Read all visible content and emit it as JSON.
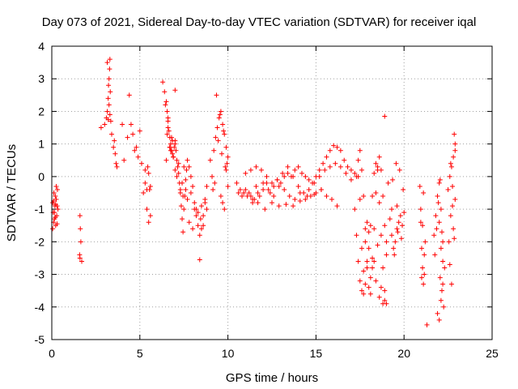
{
  "chart_data": {
    "type": "scatter",
    "title": "Day 073 of 2021, Sidereal Day-to-day VTEC variation (SDTVAR) for receiver iqal",
    "xlabel": "GPS time / hours",
    "ylabel": "SDTVAR / TECUs",
    "xlim": [
      0,
      25
    ],
    "ylim": [
      -5,
      4
    ],
    "xticks": [
      0,
      5,
      10,
      15,
      20,
      25
    ],
    "yticks": [
      -5,
      -4,
      -3,
      -2,
      -1,
      0,
      1,
      2,
      3,
      4
    ],
    "grid": true,
    "marker": "plus",
    "color": "#ff0000",
    "series": [
      {
        "name": "SDTVAR",
        "x": [
          0.05,
          0.08,
          0.12,
          0.15,
          0.18,
          0.22,
          0.25,
          0.28,
          0.32,
          0.35,
          0.1,
          0.2,
          0.3,
          0.05,
          0.15,
          0.25,
          0.1,
          0.2,
          0.3,
          0.22,
          1.6,
          1.62,
          1.65,
          1.58,
          1.7,
          1.6,
          2.8,
          3.0,
          3.1,
          3.15,
          3.2,
          3.22,
          3.25,
          3.28,
          3.3,
          3.32,
          3.35,
          3.15,
          3.25,
          3.3,
          3.2,
          3.4,
          3.5,
          3.6,
          3.65,
          3.55,
          3.7,
          4.0,
          4.1,
          4.3,
          4.4,
          4.5,
          4.6,
          4.7,
          4.8,
          4.9,
          5.0,
          5.1,
          5.2,
          5.3,
          5.4,
          5.5,
          5.6,
          5.3,
          5.45,
          5.55,
          5.4,
          5.5,
          5.6,
          6.3,
          6.4,
          6.5,
          6.55,
          6.6,
          6.65,
          6.7,
          6.75,
          6.8,
          6.85,
          6.9,
          6.95,
          7.0,
          7.05,
          7.1,
          7.15,
          7.2,
          7.25,
          7.3,
          7.35,
          7.4,
          7.45,
          7.5,
          7.55,
          7.6,
          7.65,
          7.7,
          7.8,
          7.9,
          8.0,
          8.1,
          8.2,
          8.3,
          8.4,
          8.5,
          8.6,
          8.7,
          8.8,
          6.6,
          6.7,
          6.8,
          6.9,
          7.0,
          7.2,
          7.4,
          7.6,
          6.5,
          6.6,
          6.7,
          6.85,
          7.0,
          7.3,
          7.5,
          7.7,
          7.9,
          8.1,
          8.3,
          8.5,
          8.7,
          6.45,
          6.55,
          6.75,
          7.1,
          7.45,
          7.8,
          8.0,
          8.2,
          8.45,
          8.6,
          8.4,
          7.0,
          8.8,
          9.0,
          9.1,
          9.2,
          9.3,
          9.4,
          9.5,
          9.6,
          9.7,
          9.8,
          9.9,
          10.0,
          9.35,
          9.55,
          9.75,
          9.95,
          9.45,
          9.65,
          9.85,
          9.25,
          9.15,
          9.6,
          9.8,
          9.7,
          10.0,
          9.9,
          10.6,
          10.8,
          11.0,
          11.2,
          11.4,
          11.6,
          11.8,
          12.0,
          12.2,
          12.4,
          12.6,
          12.8,
          13.0,
          13.2,
          13.4,
          13.6,
          13.8,
          14.0,
          14.2,
          14.4,
          14.6,
          14.8,
          15.0,
          15.2,
          15.4,
          15.6,
          15.8,
          16.0,
          16.2,
          16.4,
          16.6,
          16.8,
          17.0,
          17.2,
          17.4,
          11.0,
          11.3,
          11.6,
          11.9,
          12.2,
          12.5,
          12.8,
          13.1,
          13.4,
          13.7,
          14.0,
          14.3,
          14.6,
          14.9,
          15.2,
          15.5,
          15.8,
          16.1,
          16.4,
          16.7,
          17.0,
          17.3,
          11.4,
          11.7,
          12.0,
          12.3,
          12.6,
          12.9,
          13.2,
          13.5,
          13.8,
          14.1,
          14.4,
          14.7,
          15.0,
          15.3,
          15.6,
          15.9,
          16.2,
          10.5,
          10.7,
          10.9,
          11.1,
          11.3,
          11.5,
          11.7,
          12.1,
          12.5,
          12.9,
          13.3,
          13.7,
          14.1,
          14.5,
          14.9,
          15.3,
          17.2,
          17.3,
          17.4,
          17.5,
          17.6,
          17.7,
          17.8,
          17.9,
          18.0,
          18.1,
          18.2,
          18.3,
          18.4,
          18.5,
          18.6,
          18.7,
          18.8,
          18.9,
          19.0,
          17.4,
          17.5,
          17.6,
          17.7,
          17.8,
          17.9,
          18.0,
          18.1,
          18.2,
          18.3,
          18.4,
          18.5,
          18.6,
          18.7,
          18.8,
          18.9,
          17.6,
          17.8,
          18.0,
          18.2,
          18.4,
          18.6,
          18.8,
          19.0,
          17.5,
          17.9,
          18.3,
          18.7,
          19.1,
          17.7,
          18.1,
          18.5,
          18.9,
          19.0,
          18.9,
          19.2,
          19.3,
          19.4,
          19.5,
          19.6,
          19.7,
          19.8,
          19.9,
          20.0,
          19.35,
          19.55,
          19.75,
          19.95,
          19.45,
          19.65,
          19.85,
          19.3,
          19.6,
          20.9,
          20.95,
          21.0,
          21.05,
          21.1,
          21.15,
          21.2,
          20.95,
          21.05,
          21.1,
          21.0,
          21.15,
          21.3,
          21.7,
          21.8,
          21.9,
          22.0,
          22.1,
          22.2,
          22.3,
          21.75,
          21.85,
          21.95,
          22.05,
          22.15,
          22.25,
          21.9,
          22.0,
          22.1,
          22.2,
          22.05,
          22.15,
          22.1,
          22.0,
          22.2,
          22.5,
          22.6,
          22.7,
          22.8,
          22.9,
          22.55,
          22.65,
          22.75,
          22.85,
          22.6,
          22.7,
          22.8,
          22.9,
          22.65,
          22.75,
          22.85,
          22.9
        ],
        "y": [
          -0.8,
          -1.1,
          -0.5,
          -1.3,
          -0.9,
          -1.5,
          -0.7,
          -1.2,
          -0.4,
          -1.0,
          -1.4,
          -0.6,
          -0.9,
          -1.6,
          -1.1,
          -0.3,
          -0.75,
          -1.25,
          -1.45,
          -0.85,
          -1.2,
          -1.6,
          -2.0,
          -2.4,
          -2.6,
          -2.5,
          1.5,
          1.6,
          1.8,
          2.0,
          2.4,
          2.8,
          3.0,
          3.3,
          3.6,
          2.6,
          1.7,
          3.5,
          2.2,
          1.9,
          1.75,
          1.3,
          0.9,
          0.7,
          0.4,
          1.1,
          0.3,
          1.6,
          0.5,
          1.2,
          2.5,
          1.6,
          1.3,
          0.8,
          0.9,
          0.6,
          1.4,
          0.4,
          -0.5,
          0.2,
          -0.4,
          0.1,
          -0.3,
          -0.2,
          0.3,
          -0.4,
          -1.0,
          -1.4,
          -1.2,
          2.9,
          2.6,
          2.3,
          2.0,
          1.7,
          1.4,
          1.2,
          1.0,
          0.8,
          0.7,
          0.6,
          0.9,
          1.1,
          0.8,
          0.5,
          0.3,
          0.1,
          -0.2,
          -0.5,
          -0.9,
          -1.3,
          -1.7,
          -1.0,
          -0.6,
          -0.1,
          0.2,
          0.5,
          0.3,
          0.0,
          -0.3,
          -0.8,
          -1.2,
          -1.5,
          -1.8,
          -1.6,
          -1.2,
          -0.8,
          -0.3,
          1.5,
          0.9,
          1.2,
          0.6,
          1.0,
          0.4,
          -0.2,
          -0.4,
          0.5,
          1.8,
          0.9,
          1.1,
          0.2,
          -0.4,
          0.3,
          -0.7,
          -0.5,
          -1.0,
          -1.1,
          -0.9,
          -0.7,
          2.2,
          1.3,
          0.8,
          0.0,
          -0.6,
          -1.4,
          -1.6,
          -1.0,
          -1.3,
          -1.5,
          -2.55,
          2.65,
          -1.0,
          0.5,
          0.0,
          0.8,
          1.2,
          1.5,
          1.8,
          2.0,
          1.6,
          1.3,
          0.9,
          0.6,
          2.5,
          1.9,
          1.4,
          0.4,
          1.1,
          0.7,
          0.3,
          -0.2,
          -0.4,
          -0.6,
          -1.0,
          -0.8,
          -0.3,
          0.2,
          -0.5,
          -0.6,
          -0.4,
          -0.5,
          -0.7,
          -0.3,
          -0.6,
          -0.4,
          -0.2,
          -0.5,
          -0.3,
          -0.1,
          -0.2,
          0.0,
          0.1,
          0.0,
          0.2,
          0.3,
          0.1,
          0.0,
          -0.1,
          -0.2,
          0.0,
          0.2,
          0.4,
          0.6,
          0.8,
          0.95,
          0.9,
          0.8,
          0.5,
          0.3,
          0.2,
          0.1,
          0.0,
          0.1,
          0.2,
          0.3,
          0.2,
          0.0,
          -0.2,
          -0.1,
          0.1,
          0.3,
          0.0,
          -0.3,
          -0.5,
          -0.4,
          -0.2,
          0.0,
          0.2,
          0.3,
          0.4,
          0.3,
          0.1,
          -0.1,
          0.0,
          -0.8,
          -0.5,
          -0.2,
          -0.4,
          -0.6,
          -0.3,
          -0.4,
          -0.6,
          -0.7,
          -0.5,
          -0.7,
          -0.6,
          -0.5,
          -0.4,
          -0.6,
          -0.7,
          -0.9,
          -0.2,
          -0.4,
          -0.5,
          -0.6,
          -0.6,
          -0.7,
          -0.8,
          -1.0,
          -0.8,
          -0.9,
          -0.85,
          -0.9,
          -0.75,
          -0.6,
          -0.55,
          -0.4,
          -1.0,
          -1.8,
          -2.6,
          -3.2,
          -3.5,
          -3.6,
          -3.3,
          -2.8,
          -2.2,
          -1.5,
          -0.6,
          0.1,
          0.4,
          0.2,
          -0.8,
          -1.8,
          -2.8,
          -3.5,
          -3.9,
          0.5,
          0.8,
          0.2,
          -0.6,
          -1.6,
          -2.6,
          -3.4,
          -3.6,
          -2.8,
          -1.6,
          -0.5,
          0.3,
          0.6,
          0.2,
          -0.6,
          -1.5,
          -2.2,
          -2.0,
          -1.7,
          -2.5,
          -3.2,
          -3.7,
          -3.9,
          -2.4,
          -0.7,
          -1.4,
          -2.6,
          -3.4,
          -0.2,
          -2.9,
          -3.1,
          -2.1,
          -3.8,
          -2.0,
          1.85,
          -1.3,
          -1.8,
          -2.2,
          -2.0,
          -1.6,
          -1.4,
          -1.2,
          -1.5,
          -1.1,
          -0.1,
          0.4,
          0.2,
          -0.4,
          -2.4,
          -1.7,
          -1.9,
          -1.0,
          -0.9,
          -0.3,
          -1.4,
          -2.2,
          -2.8,
          -3.3,
          -3.0,
          -2.0,
          -1.0,
          -1.5,
          -0.5,
          -3.1,
          -2.4,
          -4.55,
          -1.8,
          -1.2,
          -0.6,
          -0.2,
          -1.0,
          -2.0,
          -2.8,
          -2.4,
          -1.6,
          -0.8,
          -3.1,
          -3.5,
          -4.0,
          -4.2,
          -4.4,
          -3.8,
          -2.6,
          -0.1,
          -1.7,
          -2.2,
          -1.4,
          -3.3,
          -0.4,
          0.0,
          0.3,
          0.6,
          1.0,
          -2.0,
          -1.2,
          -0.9,
          1.3,
          -2.7,
          -3.3,
          -1.6,
          0.8,
          0.4,
          -0.3,
          -1.9,
          -0.7
        ]
      }
    ]
  }
}
